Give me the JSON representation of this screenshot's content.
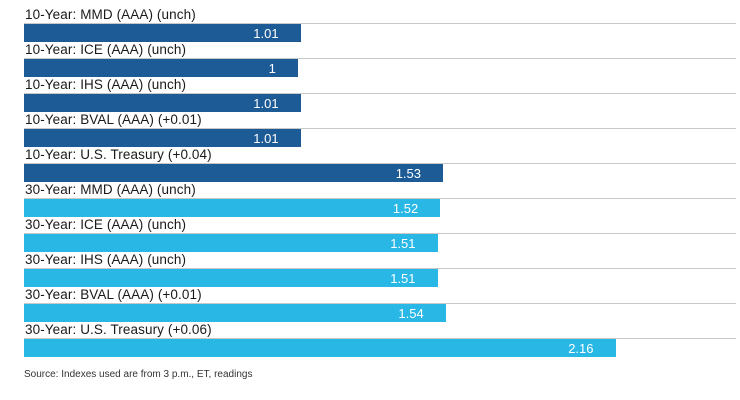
{
  "chart_data": {
    "type": "bar",
    "orientation": "horizontal",
    "xlim": [
      0,
      2.6
    ],
    "grid": "per-row top rule lines, full width",
    "legend": "none",
    "title": "",
    "bars": [
      {
        "label": "10-Year: MMD (AAA) (unch)",
        "value": 1.01,
        "display": "1.01",
        "group": "10-year"
      },
      {
        "label": "10-Year: ICE (AAA) (unch)",
        "value": 1.0,
        "display": "1",
        "group": "10-year"
      },
      {
        "label": "10-Year: IHS (AAA) (unch)",
        "value": 1.01,
        "display": "1.01",
        "group": "10-year"
      },
      {
        "label": "10-Year: BVAL (AAA) (+0.01)",
        "value": 1.01,
        "display": "1.01",
        "group": "10-year"
      },
      {
        "label": "10-Year: U.S. Treasury (+0.04)",
        "value": 1.53,
        "display": "1.53",
        "group": "10-year"
      },
      {
        "label": "30-Year: MMD (AAA) (unch)",
        "value": 1.52,
        "display": "1.52",
        "group": "30-year"
      },
      {
        "label": "30-Year: ICE (AAA) (unch)",
        "value": 1.51,
        "display": "1.51",
        "group": "30-year"
      },
      {
        "label": "30-Year: IHS (AAA) (unch)",
        "value": 1.51,
        "display": "1.51",
        "group": "30-year"
      },
      {
        "label": "30-Year: BVAL (AAA) (+0.01)",
        "value": 1.54,
        "display": "1.54",
        "group": "30-year"
      },
      {
        "label": "30-Year: U.S. Treasury (+0.06)",
        "value": 2.16,
        "display": "2.16",
        "group": "30-year"
      }
    ],
    "group_colors": {
      "10-year": "#1d5b97",
      "30-year": "#29b8e5"
    },
    "rule_line_color": "#c8c8c8",
    "value_label_color": "#ffffff",
    "source": "Source: Indexes used are from 3 p.m., ET, readings"
  }
}
